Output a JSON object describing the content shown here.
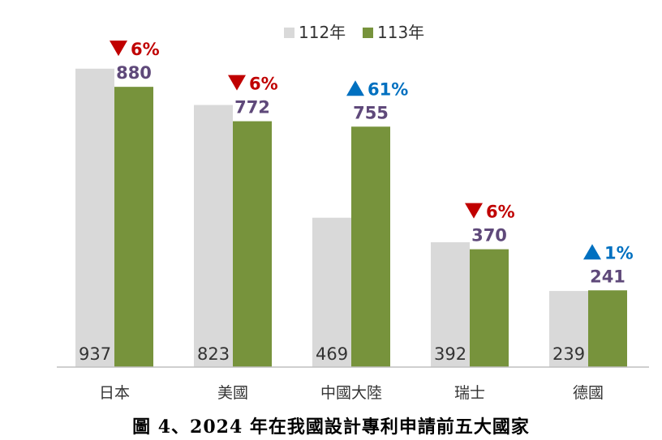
{
  "chart_data": {
    "type": "bar",
    "categories": [
      "日本",
      "美國",
      "中國大陸",
      "瑞士",
      "德國"
    ],
    "series": [
      {
        "name": "112年",
        "values": [
          937,
          823,
          469,
          392,
          239
        ],
        "color": "#d9d9d9"
      },
      {
        "name": "113年",
        "values": [
          880,
          772,
          755,
          370,
          241
        ],
        "color": "#77933c"
      }
    ],
    "changes": [
      {
        "direction": "down",
        "text": "6%"
      },
      {
        "direction": "down",
        "text": "6%"
      },
      {
        "direction": "up",
        "text": "61%"
      },
      {
        "direction": "down",
        "text": "6%"
      },
      {
        "direction": "up",
        "text": "1%"
      }
    ],
    "ylim": [
      0,
      1000
    ],
    "grid": false,
    "legend_position": "top-center",
    "colors": {
      "down": "#c00000",
      "up": "#0070c0",
      "value_label": "#5f497a"
    }
  },
  "caption": "圖 4、2024 年在我國設計專利申請前五大國家"
}
